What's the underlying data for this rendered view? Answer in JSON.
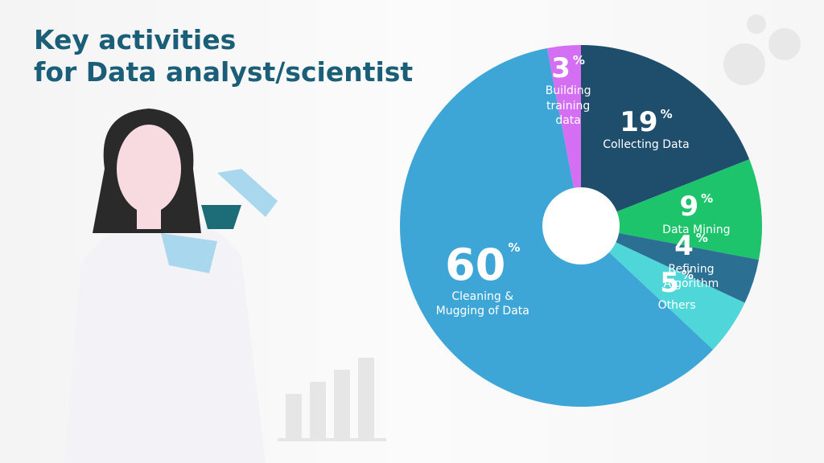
{
  "chart_data": {
    "type": "pie",
    "title": "Key activities\nfor Data analyst/scientist",
    "unit": "%",
    "categories": [
      "Collecting Data",
      "Data Mining",
      "Refining Algorithm",
      "Others",
      "Cleaning & Mugging of Data",
      "Building training data"
    ],
    "values": [
      19,
      9,
      4,
      5,
      60,
      3
    ],
    "colors": [
      "#1f4e6d",
      "#1ec46b",
      "#2b6f92",
      "#4fd6d8",
      "#3ea6d6",
      "#d46ef2"
    ]
  }
}
